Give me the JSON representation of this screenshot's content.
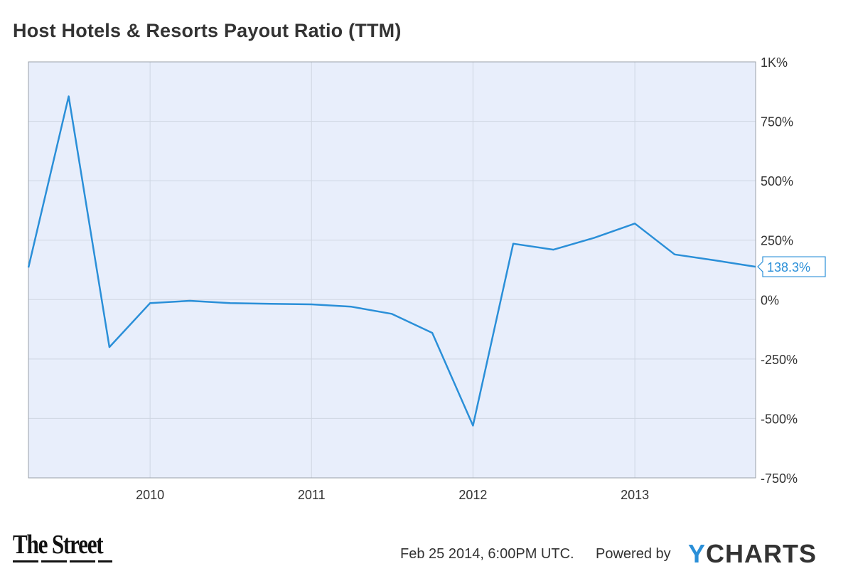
{
  "chart_data": {
    "type": "line",
    "title": "Host Hotels & Resorts Payout Ratio (TTM)",
    "x": [
      "2009-04",
      "2009-07",
      "2009-10",
      "2010-01",
      "2010-04",
      "2010-07",
      "2010-10",
      "2011-01",
      "2011-04",
      "2011-07",
      "2011-10",
      "2012-01",
      "2012-04",
      "2012-07",
      "2012-10",
      "2013-01",
      "2013-04",
      "2013-07",
      "2013-10"
    ],
    "series": [
      {
        "values": [
          135,
          855,
          -200,
          -15,
          -5,
          -15,
          -18,
          -20,
          -30,
          -60,
          -140,
          -530,
          235,
          210,
          260,
          320,
          190,
          165,
          138.3
        ]
      }
    ],
    "xtick_labels": [
      "2010",
      "2011",
      "2012",
      "2013"
    ],
    "ytick_labels": [
      "1K%",
      "750%",
      "500%",
      "250%",
      "0%",
      "-250%",
      "-500%",
      "-750%"
    ],
    "ytick_values": [
      1000,
      750,
      500,
      250,
      0,
      -250,
      -500,
      -750
    ],
    "ylim": [
      -750,
      1000
    ],
    "grid": true,
    "last_value_label": "138.3%",
    "line_color": "#2a8fd8",
    "plot_background": "#e8eefb"
  },
  "footer": {
    "date": "Feb 25 2014, 6:00PM UTC.",
    "powered_by": "Powered by",
    "ycharts_y": "Y",
    "ycharts_rest": "CHARTS",
    "thestreet": "The Street"
  }
}
